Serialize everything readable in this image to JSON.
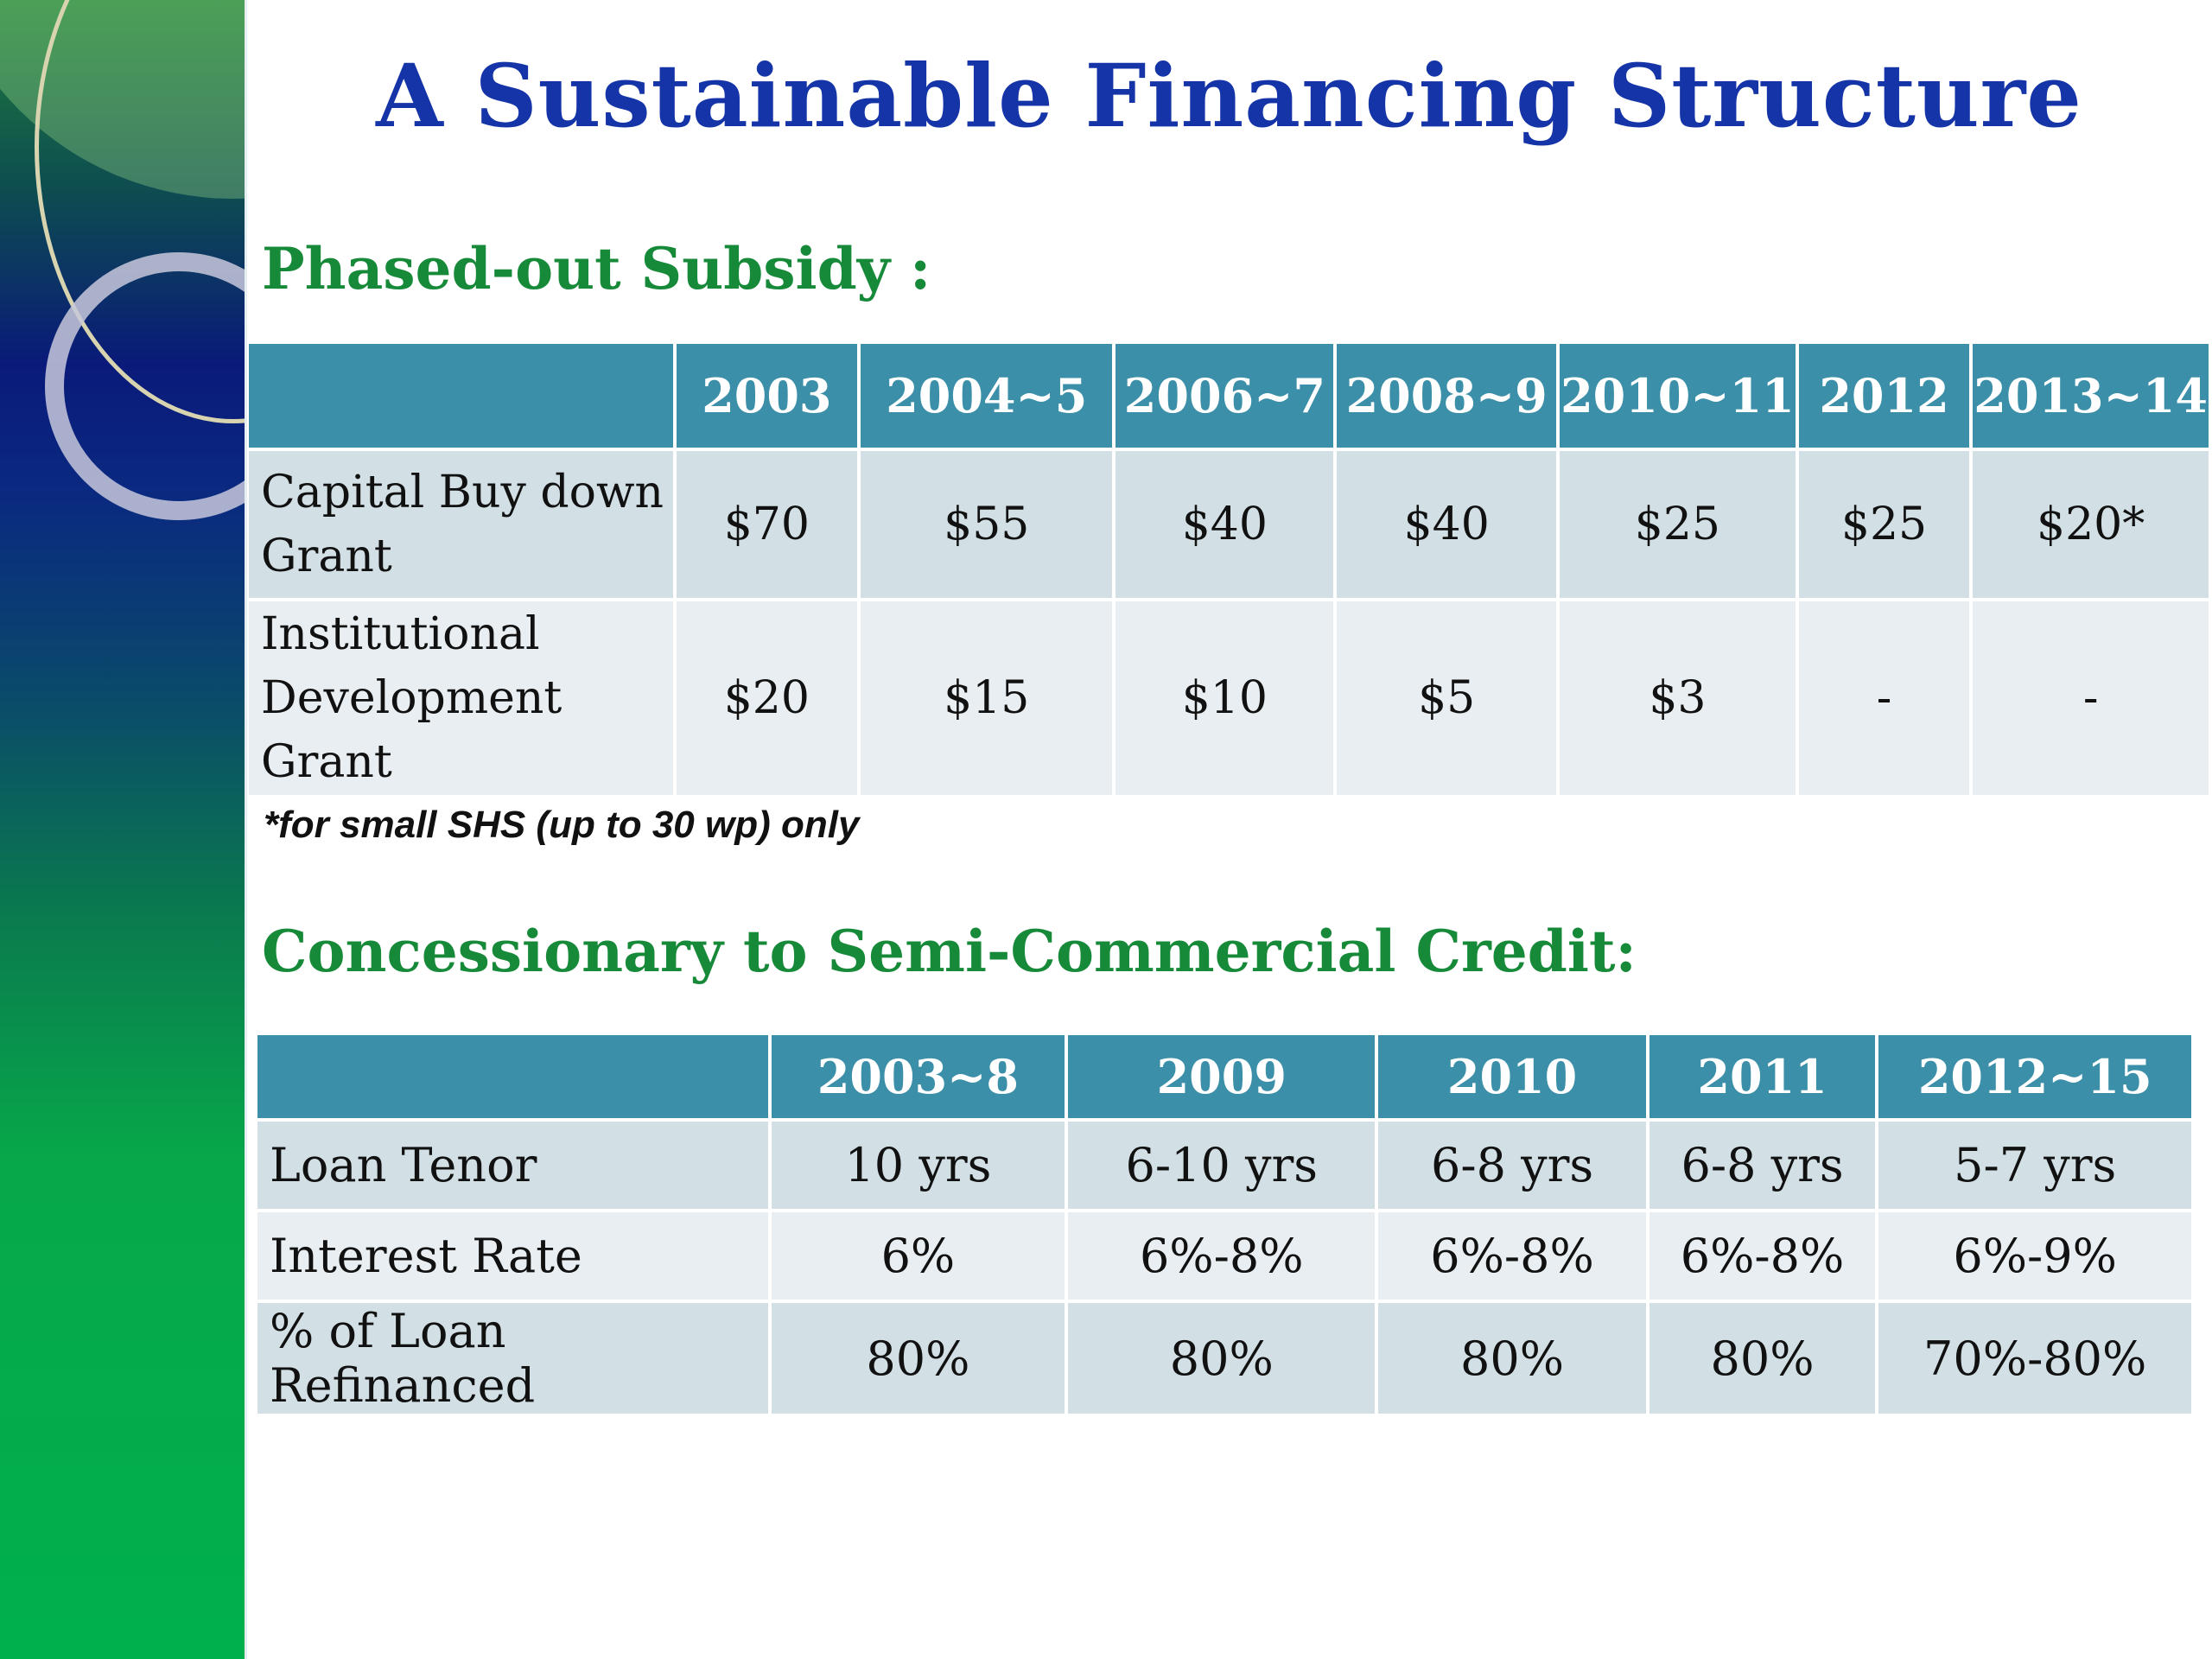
{
  "title": "A Sustainable Financing Structure",
  "subsidy": {
    "heading": "Phased-out Subsidy :",
    "columns": [
      "2003",
      "2004~5",
      "2006~7",
      "2008~9",
      "2010~11",
      "2012",
      "2013~14"
    ],
    "rows": [
      {
        "label": "Capital Buy down Grant",
        "values": [
          "$70",
          "$55",
          "$40",
          "$40",
          "$25",
          "$25",
          "$20*"
        ]
      },
      {
        "label": "Institutional Development Grant",
        "values": [
          "$20",
          "$15",
          "$10",
          "$5",
          "$3",
          "-",
          "-"
        ]
      }
    ],
    "footnote": "*for small SHS (up to 30 wp) only"
  },
  "credit": {
    "heading": "Concessionary to Semi-Commercial Credit:",
    "columns": [
      "2003~8",
      "2009",
      "2010",
      "2011",
      "2012~15"
    ],
    "rows": [
      {
        "label": "Loan Tenor",
        "values": [
          "10 yrs",
          "6-10 yrs",
          "6-8 yrs",
          "6-8 yrs",
          "5-7 yrs"
        ]
      },
      {
        "label": "Interest Rate",
        "values": [
          "6%",
          "6%-8%",
          "6%-8%",
          "6%-8%",
          "6%-9%"
        ]
      },
      {
        "label": "% of Loan Refinanced",
        "values": [
          "80%",
          "80%",
          "80%",
          "80%",
          "70%-80%"
        ]
      }
    ]
  },
  "colors": {
    "title": "#1434a8",
    "heading": "#178a3a",
    "table_header": "#3b8fa8",
    "row_odd": "#d2dfe4",
    "row_even": "#e8eef1"
  }
}
